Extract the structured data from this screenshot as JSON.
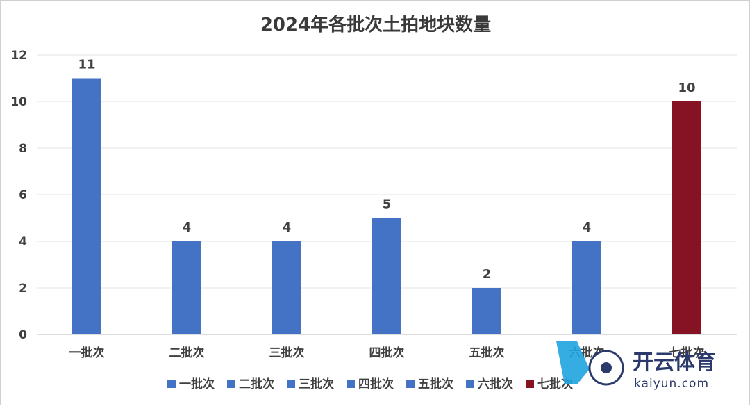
{
  "chart_data": {
    "type": "bar",
    "title": "2024年各批次土拍地块数量",
    "categories": [
      "一批次",
      "二批次",
      "三批次",
      "四批次",
      "五批次",
      "六批次",
      "七批次"
    ],
    "values": [
      11,
      4,
      4,
      5,
      2,
      4,
      10
    ],
    "colors": [
      "#4472C4",
      "#4472C4",
      "#4472C4",
      "#4472C4",
      "#4472C4",
      "#4472C4",
      "#861323"
    ],
    "ylim": [
      0,
      12
    ],
    "yticks": [
      0,
      2,
      4,
      6,
      8,
      10,
      12
    ],
    "grid": true,
    "data_labels": true,
    "legend_position": "bottom",
    "legend": [
      "一批次",
      "二批次",
      "三批次",
      "四批次",
      "五批次",
      "六批次",
      "七批次"
    ]
  },
  "watermark": {
    "brand": "开云体育",
    "url": "kaiyun.com"
  }
}
